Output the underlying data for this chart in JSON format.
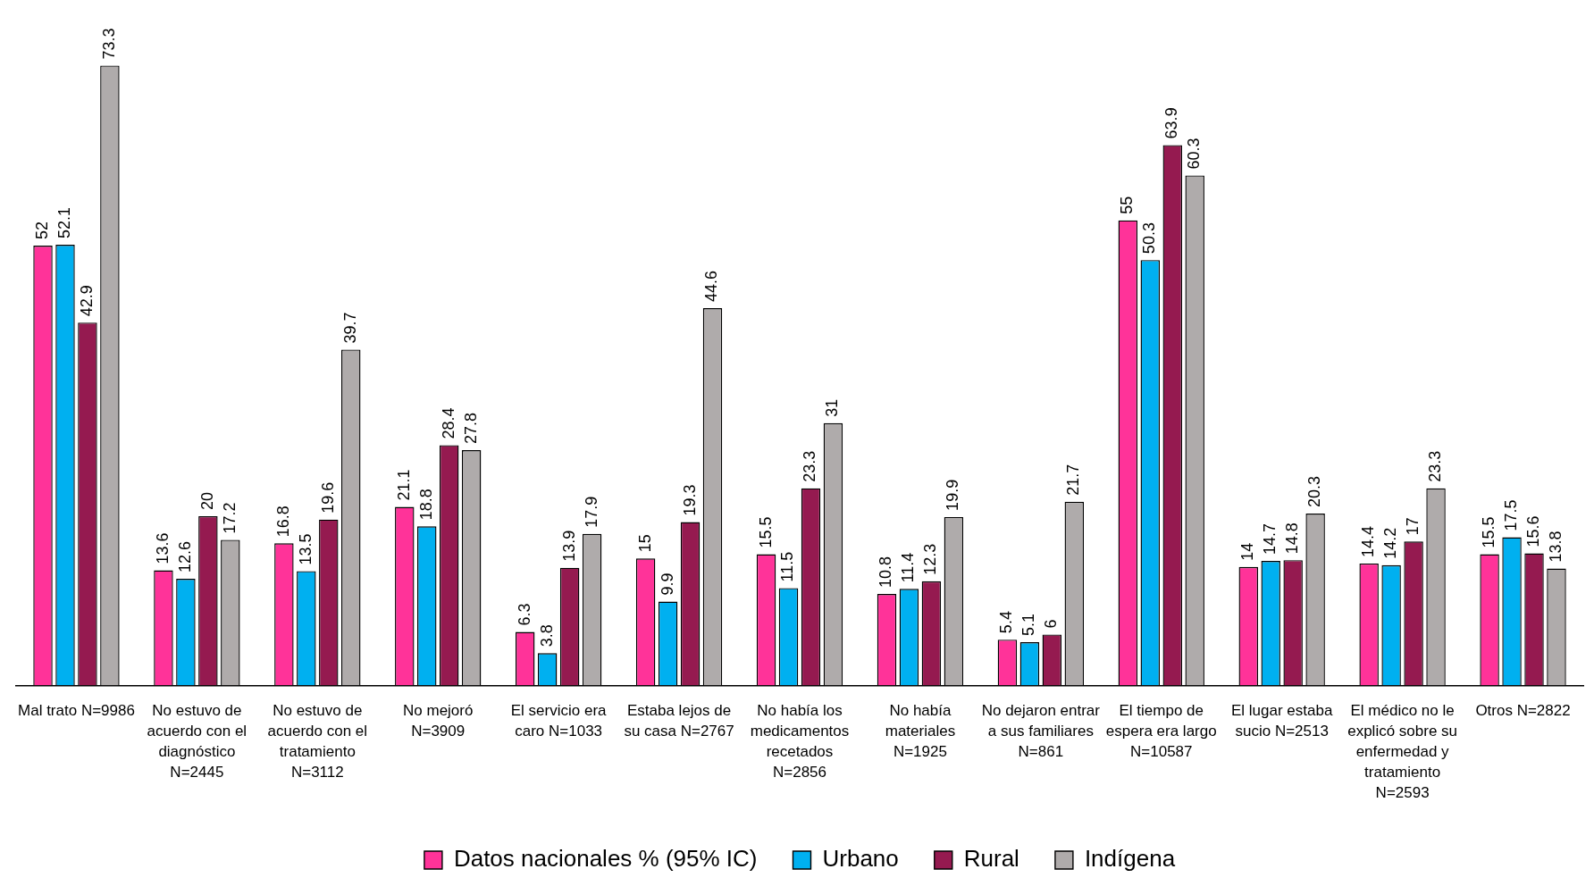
{
  "chart_data": {
    "type": "bar",
    "categories": [
      "Mal trato N=9986",
      "No estuvo de acuerdo con el diagnóstico N=2445",
      "No estuvo de acuerdo con el tratamiento N=3112",
      "No mejoró N=3909",
      "El servicio era caro N=1033",
      "Estaba lejos de su casa N=2767",
      "No había los medicamentos recetados N=2856",
      "No había materiales N=1925",
      "No dejaron entrar a sus familiares N=861",
      "El tiempo de espera era largo N=10587",
      "El lugar estaba sucio N=2513",
      "El médico no le explicó sobre su enfermedad y tratamiento N=2593",
      "Otros N=2822"
    ],
    "series": [
      {
        "name": "Datos nacionales % (95% IC)",
        "color": "#ff3399",
        "values": [
          52,
          13.6,
          16.8,
          21.1,
          6.3,
          15,
          15.5,
          10.8,
          5.4,
          55,
          14,
          14.4,
          15.5
        ]
      },
      {
        "name": "Urbano",
        "color": "#00b0f0",
        "values": [
          52.1,
          12.6,
          13.5,
          18.8,
          3.8,
          9.9,
          11.5,
          11.4,
          5.1,
          50.3,
          14.7,
          14.2,
          17.5
        ]
      },
      {
        "name": "Rural",
        "color": "#951a50",
        "values": [
          42.9,
          20,
          19.6,
          28.4,
          13.9,
          19.3,
          23.3,
          12.3,
          6,
          63.9,
          14.8,
          17,
          15.6
        ]
      },
      {
        "name": "Indígena",
        "color": "#afabab",
        "values": [
          73.3,
          17.2,
          39.7,
          27.8,
          17.9,
          44.6,
          31,
          19.9,
          21.7,
          60.3,
          20.3,
          23.3,
          13.8
        ]
      }
    ],
    "data_labels": true,
    "legend": "bottom",
    "tick_labels": "x",
    "grid": false
  }
}
